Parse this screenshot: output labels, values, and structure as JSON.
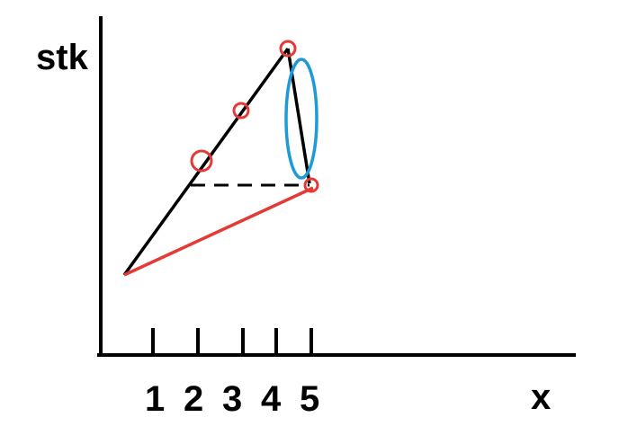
{
  "axes": {
    "y_label": "stk",
    "x_label": "x"
  },
  "ticks": [
    "1",
    "2",
    "3",
    "4",
    "5"
  ],
  "colors": {
    "axis": "#000000",
    "black_line": "#000000",
    "red_line": "#e53935",
    "marker": "#e53935",
    "ellipse": "#1e9bd7"
  }
}
